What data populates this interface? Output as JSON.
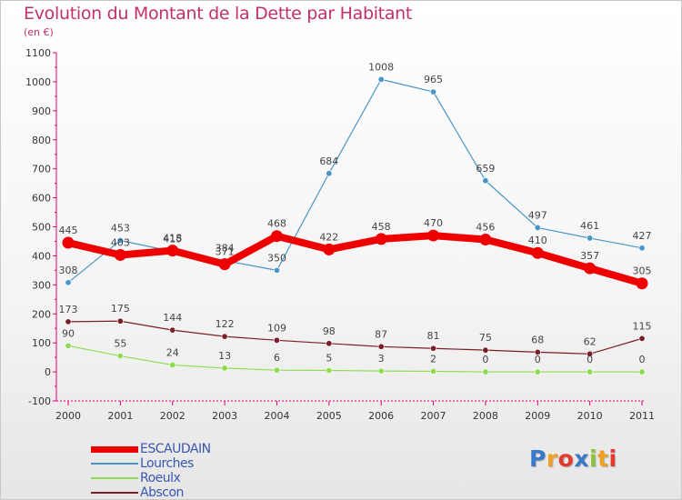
{
  "chart_data": {
    "type": "line",
    "title": "Evolution du Montant de la Dette par Habitant",
    "subtitle": "(en €)",
    "x": [
      "2000",
      "2001",
      "2002",
      "2003",
      "2004",
      "2005",
      "2006",
      "2007",
      "2008",
      "2009",
      "2010",
      "2011"
    ],
    "yticks": [
      "1100",
      "1000",
      "900",
      "800",
      "700",
      "600",
      "500",
      "400",
      "300",
      "200",
      "100",
      "0",
      "-100"
    ],
    "ylim": [
      -100,
      1100
    ],
    "grid": false,
    "legend_position": "bottom-left",
    "series": [
      {
        "name": "ESCAUDAIN",
        "color": "#ee0000",
        "values": [
          445,
          403,
          418,
          371,
          468,
          422,
          458,
          470,
          456,
          410,
          357,
          305
        ],
        "labels": [
          "445",
          "403",
          "418",
          "371",
          "468",
          "422",
          "458",
          "470",
          "456",
          "410",
          "357",
          "305"
        ]
      },
      {
        "name": "Lourches",
        "color": "#4a95c8",
        "values": [
          308,
          453,
          415,
          384,
          350,
          684,
          1008,
          965,
          659,
          497,
          461,
          427
        ],
        "labels": [
          "308",
          "453",
          "415",
          "384",
          "350",
          "684",
          "1008",
          "965",
          "659",
          "497",
          "461",
          "427"
        ]
      },
      {
        "name": "Roeulx",
        "color": "#8edc4e",
        "values": [
          90,
          55,
          24,
          13,
          6,
          5,
          3,
          2,
          0,
          0,
          0,
          0
        ],
        "labels": [
          "90",
          "55",
          "24",
          "13",
          "6",
          "5",
          "3",
          "2",
          "0",
          "0",
          "0",
          "0"
        ]
      },
      {
        "name": "Abscon",
        "color": "#7a1f28",
        "values": [
          173,
          175,
          144,
          122,
          109,
          98,
          87,
          81,
          75,
          68,
          62,
          115
        ],
        "labels": [
          "173",
          "175",
          "144",
          "122",
          "109",
          "98",
          "87",
          "81",
          "75",
          "68",
          "62",
          "115"
        ]
      }
    ]
  },
  "logo": {
    "letters": [
      "P",
      "r",
      "o",
      "x",
      "i",
      "t",
      "i"
    ],
    "colors": [
      "#3a78c8",
      "#f0a020",
      "#e43a2a",
      "#3a78c8",
      "#8ac43a",
      "#f0a020",
      "#e43a2a"
    ]
  }
}
